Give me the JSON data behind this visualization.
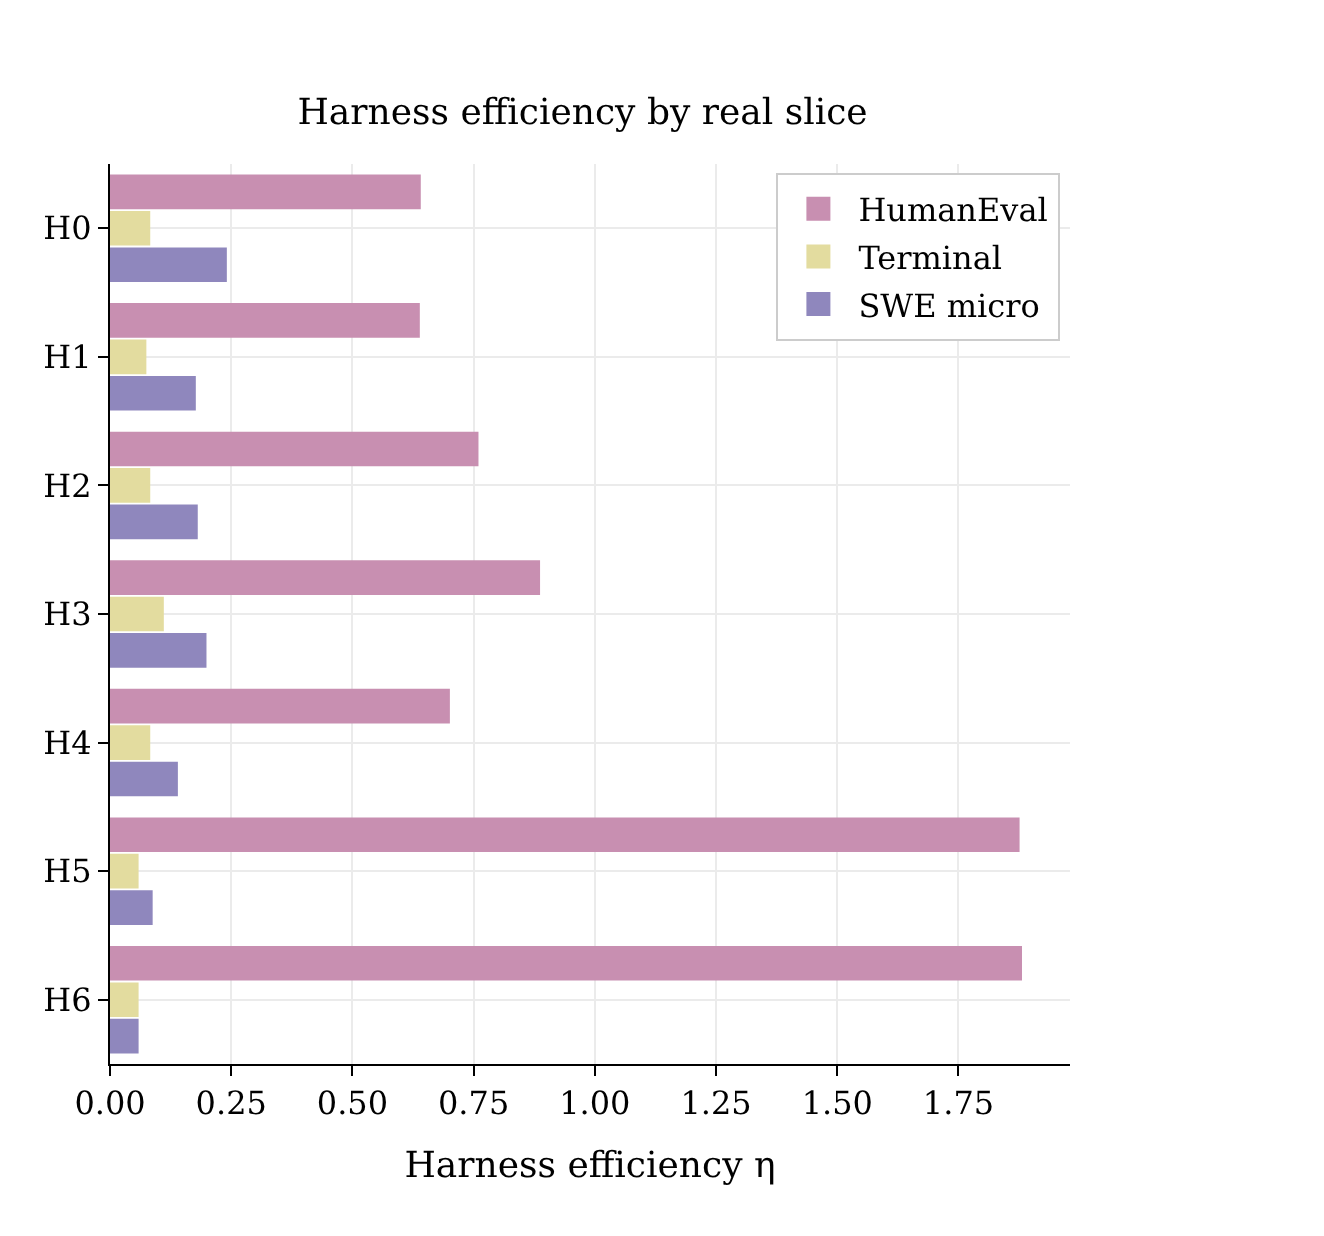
{
  "chart_data": {
    "type": "bar",
    "orientation": "horizontal",
    "title": "Harness efficiency by real slice",
    "xlabel": "Harness efficiency η",
    "categories": [
      "H0",
      "H1",
      "H2",
      "H3",
      "H4",
      "H5",
      "H6"
    ],
    "series": [
      {
        "name": "HumanEval",
        "color": "#c88fb1",
        "values": [
          0.641,
          0.639,
          0.76,
          0.887,
          0.701,
          1.876,
          1.881
        ]
      },
      {
        "name": "Terminal",
        "color": "#e3dc9f",
        "values": [
          0.083,
          0.075,
          0.083,
          0.111,
          0.083,
          0.059,
          0.059
        ]
      },
      {
        "name": "SWE micro",
        "color": "#8f87bd",
        "values": [
          0.241,
          0.177,
          0.181,
          0.199,
          0.14,
          0.088,
          0.059
        ]
      }
    ],
    "xlim": [
      0,
      1.98
    ],
    "xticks": [
      {
        "value": 0,
        "label": "0.00"
      },
      {
        "value": 0.25,
        "label": "0.25"
      },
      {
        "value": 0.5,
        "label": "0.50"
      },
      {
        "value": 0.75,
        "label": "0.75"
      },
      {
        "value": 1.0,
        "label": "1.00"
      },
      {
        "value": 1.25,
        "label": "1.25"
      },
      {
        "value": 1.5,
        "label": "1.50"
      },
      {
        "value": 1.75,
        "label": "1.75"
      }
    ],
    "grid": true,
    "legend": "top right"
  }
}
